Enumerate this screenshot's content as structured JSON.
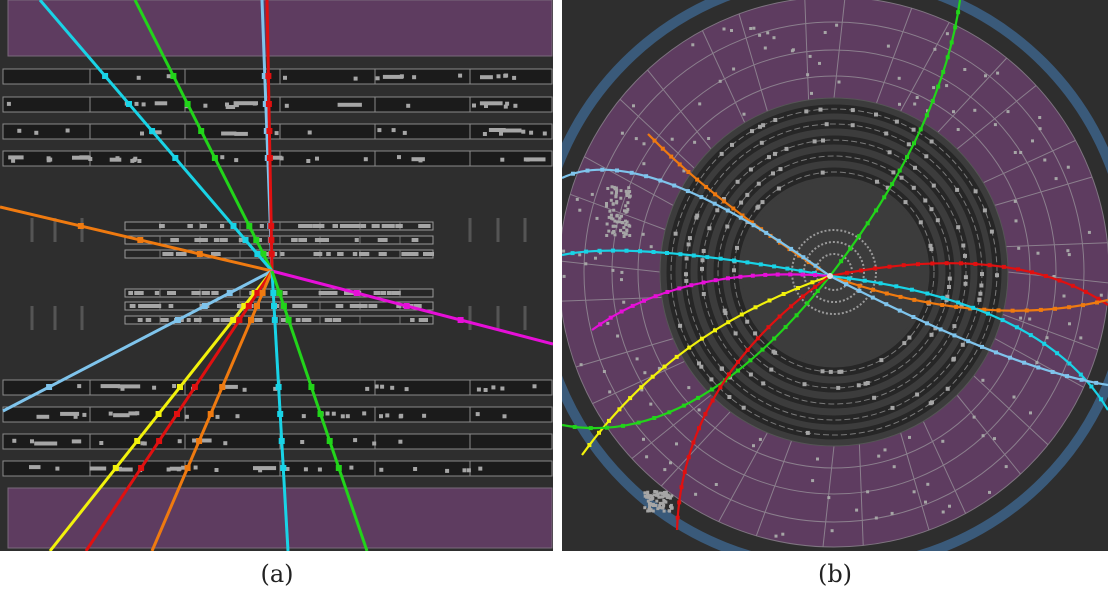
{
  "colors": {
    "background": "#2e2e2e",
    "detector_purple": "#5e3c60",
    "strip_dark": "#1b1b1b",
    "hit_gray": "#a6a6a6",
    "outer_ring_blue": "#3a5a7a",
    "tracks": {
      "cyan": "#19d3e6",
      "light_blue": "#7fc4ec",
      "green": "#22d41a",
      "red": "#e01010",
      "orange": "#ef7a10",
      "yellow": "#f2f20c",
      "magenta": "#e60fd8"
    }
  },
  "panels": {
    "a": {
      "caption": "(a)"
    },
    "b": {
      "caption": "(b)"
    }
  }
}
